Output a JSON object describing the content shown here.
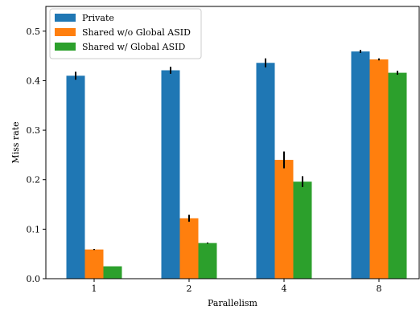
{
  "chart_data": {
    "type": "bar",
    "title": "",
    "xlabel": "Parallelism",
    "ylabel": "Miss rate",
    "ylim": [
      0,
      0.55
    ],
    "yticks": [
      "0.0",
      "0.1",
      "0.2",
      "0.3",
      "0.4",
      "0.5"
    ],
    "categories": [
      "1",
      "2",
      "4",
      "8"
    ],
    "legend_position": "top-left",
    "grid": false,
    "series": [
      {
        "name": "Private",
        "color": "#1f77b4",
        "values": [
          0.41,
          0.421,
          0.436,
          0.459
        ],
        "errors": [
          0.008,
          0.007,
          0.009,
          0.003
        ]
      },
      {
        "name": "Shared w/o Global ASID",
        "color": "#ff7f0e",
        "values": [
          0.059,
          0.122,
          0.24,
          0.443
        ],
        "errors": [
          0.001,
          0.007,
          0.017,
          0.002
        ]
      },
      {
        "name": "Shared w/ Global ASID",
        "color": "#2ca02c",
        "values": [
          0.025,
          0.072,
          0.196,
          0.416
        ],
        "errors": [
          0.0,
          0.001,
          0.011,
          0.004
        ]
      }
    ]
  }
}
